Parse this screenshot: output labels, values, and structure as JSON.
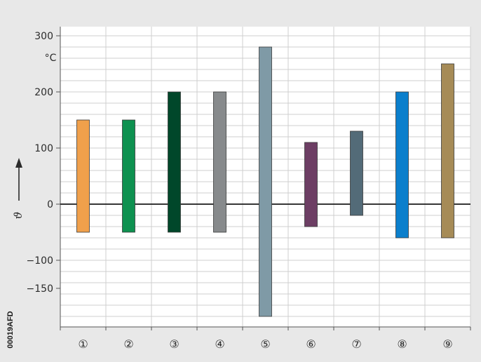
{
  "chart_data": {
    "type": "bar",
    "subtype": "floating-range",
    "categories": [
      "①",
      "②",
      "③",
      "④",
      "⑤",
      "⑥",
      "⑦",
      "⑧",
      "⑨"
    ],
    "ranges": [
      {
        "min": -50,
        "max": 150,
        "color": "#f0a04b"
      },
      {
        "min": -50,
        "max": 150,
        "color": "#0e9150"
      },
      {
        "min": -50,
        "max": 200,
        "color": "#00472a"
      },
      {
        "min": -50,
        "max": 200,
        "color": "#878a8c"
      },
      {
        "min": -200,
        "max": 280,
        "color": "#7f9aa6"
      },
      {
        "min": -40,
        "max": 110,
        "color": "#6d3e64"
      },
      {
        "min": -20,
        "max": 130,
        "color": "#536b78"
      },
      {
        "min": -60,
        "max": 200,
        "color": "#0b7fcc"
      },
      {
        "min": -60,
        "max": 250,
        "color": "#a68b57"
      }
    ],
    "y_ticks": [
      {
        "value": 300,
        "label": "300"
      },
      {
        "value": 200,
        "label": "200"
      },
      {
        "value": 100,
        "label": "100"
      },
      {
        "value": 0,
        "label": "0"
      },
      {
        "value": -100,
        "label": "−100"
      },
      {
        "value": -150,
        "label": "−150"
      }
    ],
    "y_unit": "°C",
    "y_symbol": "ϑ",
    "ylim": [
      -200,
      300
    ],
    "grid": true,
    "zero_line": true,
    "side_code": "00019AFD"
  }
}
